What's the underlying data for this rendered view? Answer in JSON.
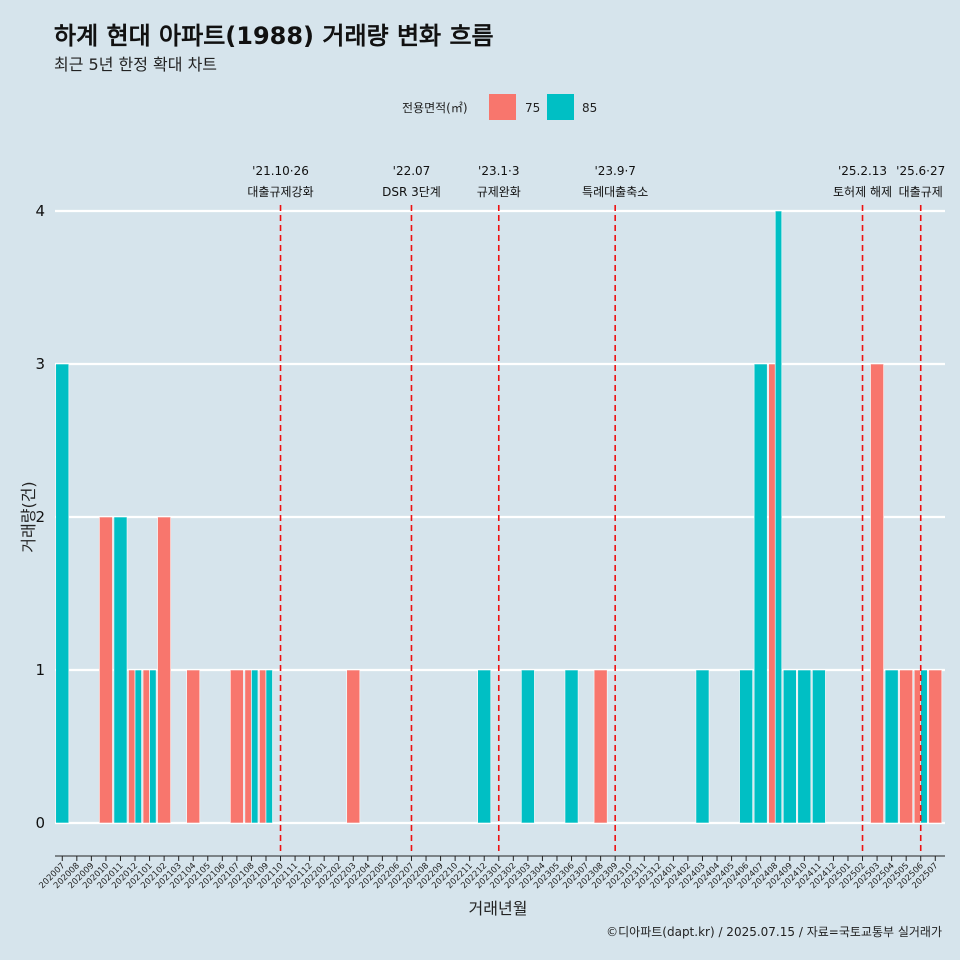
{
  "chart_data": {
    "type": "bar",
    "title": "하계 현대 아파트(1988) 거래량 변화 흐름",
    "subtitle": "최근 5년 한정 확대 차트",
    "xlabel": "거래년월",
    "ylabel": "거래량(건)",
    "ylim": [
      0,
      4
    ],
    "yticks": [
      0,
      1,
      2,
      3,
      4
    ],
    "grid": true,
    "legend": {
      "title": "전용면적(㎡)",
      "position": "top",
      "entries": [
        {
          "name": "75",
          "color": "#f8766d"
        },
        {
          "name": "85",
          "color": "#00bfc4"
        }
      ]
    },
    "categories": [
      "202007",
      "202008",
      "202009",
      "202010",
      "202011",
      "202012",
      "202101",
      "202102",
      "202103",
      "202104",
      "202105",
      "202106",
      "202107",
      "202108",
      "202109",
      "202110",
      "202111",
      "202112",
      "202201",
      "202202",
      "202203",
      "202204",
      "202205",
      "202206",
      "202207",
      "202208",
      "202209",
      "202210",
      "202211",
      "202212",
      "202301",
      "202302",
      "202303",
      "202304",
      "202305",
      "202306",
      "202307",
      "202308",
      "202309",
      "202310",
      "202311",
      "202312",
      "202401",
      "202402",
      "202403",
      "202404",
      "202405",
      "202406",
      "202407",
      "202408",
      "202409",
      "202410",
      "202411",
      "202412",
      "202501",
      "202502",
      "202503",
      "202504",
      "202505",
      "202506",
      "202507"
    ],
    "series": [
      {
        "name": "75",
        "color": "#f8766d",
        "values": [
          0,
          0,
          0,
          2,
          0,
          1,
          1,
          2,
          0,
          1,
          0,
          0,
          1,
          1,
          1,
          0,
          0,
          0,
          0,
          0,
          1,
          0,
          0,
          0,
          0,
          0,
          0,
          0,
          0,
          0,
          0,
          0,
          0,
          0,
          0,
          0,
          0,
          1,
          0,
          0,
          0,
          0,
          0,
          0,
          0,
          0,
          0,
          0,
          0,
          3,
          0,
          0,
          0,
          0,
          0,
          0,
          3,
          0,
          1,
          1,
          1
        ]
      },
      {
        "name": "85",
        "color": "#00bfc4",
        "values": [
          3,
          0,
          0,
          0,
          2,
          1,
          1,
          0,
          0,
          0,
          0,
          0,
          0,
          1,
          1,
          0,
          0,
          0,
          0,
          0,
          0,
          0,
          0,
          0,
          0,
          0,
          0,
          0,
          0,
          1,
          0,
          0,
          1,
          0,
          0,
          1,
          0,
          0,
          0,
          0,
          0,
          0,
          0,
          0,
          1,
          0,
          0,
          1,
          3,
          4,
          1,
          1,
          1,
          0,
          0,
          0,
          0,
          1,
          0,
          1,
          0
        ]
      }
    ],
    "annotations": [
      {
        "x": "202110",
        "date": "'21.10·26",
        "label": "대출규제강화"
      },
      {
        "x": "202207",
        "date": "'22.07",
        "label": "DSR 3단계"
      },
      {
        "x": "202301",
        "date": "'23.1·3",
        "label": "규제완화"
      },
      {
        "x": "202309",
        "date": "'23.9·7",
        "label": "특례대출축소"
      },
      {
        "x": "202502",
        "date": "'25.2.13",
        "label": "토허제 해제"
      },
      {
        "x": "202506",
        "date": "'25.6·27",
        "label": "대출규제"
      }
    ],
    "caption": "©디아파트(dapt.kr) / 2025.07.15 / 자료=국토교통부 실거래가"
  }
}
